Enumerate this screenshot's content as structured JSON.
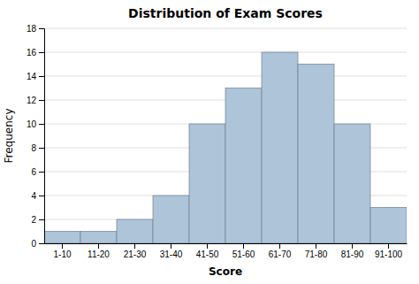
{
  "chart_data": {
    "type": "bar",
    "title": "Distribution of Exam Scores",
    "xlabel": "Score",
    "ylabel": "Frequency",
    "categories": [
      "1-10",
      "11-20",
      "21-30",
      "31-40",
      "41-50",
      "51-60",
      "61-70",
      "71-80",
      "81-90",
      "91-100"
    ],
    "values": [
      1,
      1,
      2,
      4,
      10,
      13,
      16,
      15,
      10,
      3
    ],
    "color": "#adc4d9",
    "ylim": [
      0,
      18
    ],
    "yticks": [
      0,
      2,
      4,
      6,
      8,
      10,
      12,
      14,
      16,
      18
    ],
    "grid": true
  }
}
